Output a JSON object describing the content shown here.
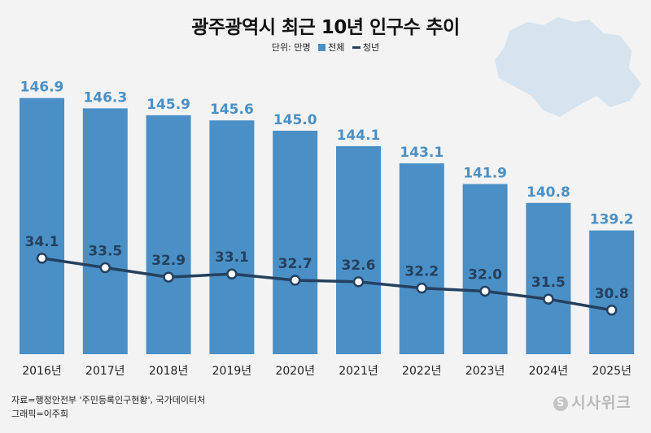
{
  "title": "광주광역시 최근 10년 인구수 추이",
  "legend": {
    "unit_label": "단위: 만명",
    "bar_label": "전체",
    "line_label": "청년"
  },
  "source": {
    "line1": "자료=행정안전부 '주민등록인구현황', 국가데이터처",
    "line2": "그래픽=이주희"
  },
  "brand": {
    "name": "시사위크",
    "mark": "S"
  },
  "colors": {
    "bar": "#4a90c6",
    "bar_label": "#4a90c6",
    "line": "#25405e",
    "background": "#f3f3f3",
    "map": "#d5e4ef"
  },
  "chart_data": {
    "type": "bar",
    "categories": [
      "2016년",
      "2017년",
      "2018년",
      "2019년",
      "2020년",
      "2021년",
      "2022년",
      "2023년",
      "2024년",
      "2025년"
    ],
    "series": [
      {
        "name": "전체",
        "type": "bar",
        "values": [
          146.9,
          146.3,
          145.9,
          145.6,
          145.0,
          144.1,
          143.1,
          141.9,
          140.8,
          139.2
        ]
      },
      {
        "name": "청년",
        "type": "line",
        "values": [
          34.1,
          33.5,
          32.9,
          33.1,
          32.7,
          32.6,
          32.2,
          32.0,
          31.5,
          30.8
        ]
      }
    ],
    "ylim_bar": [
      132,
      147.5
    ],
    "ylim_line": [
      28,
      37.5
    ],
    "grid": false,
    "legend_position": "top-center"
  }
}
